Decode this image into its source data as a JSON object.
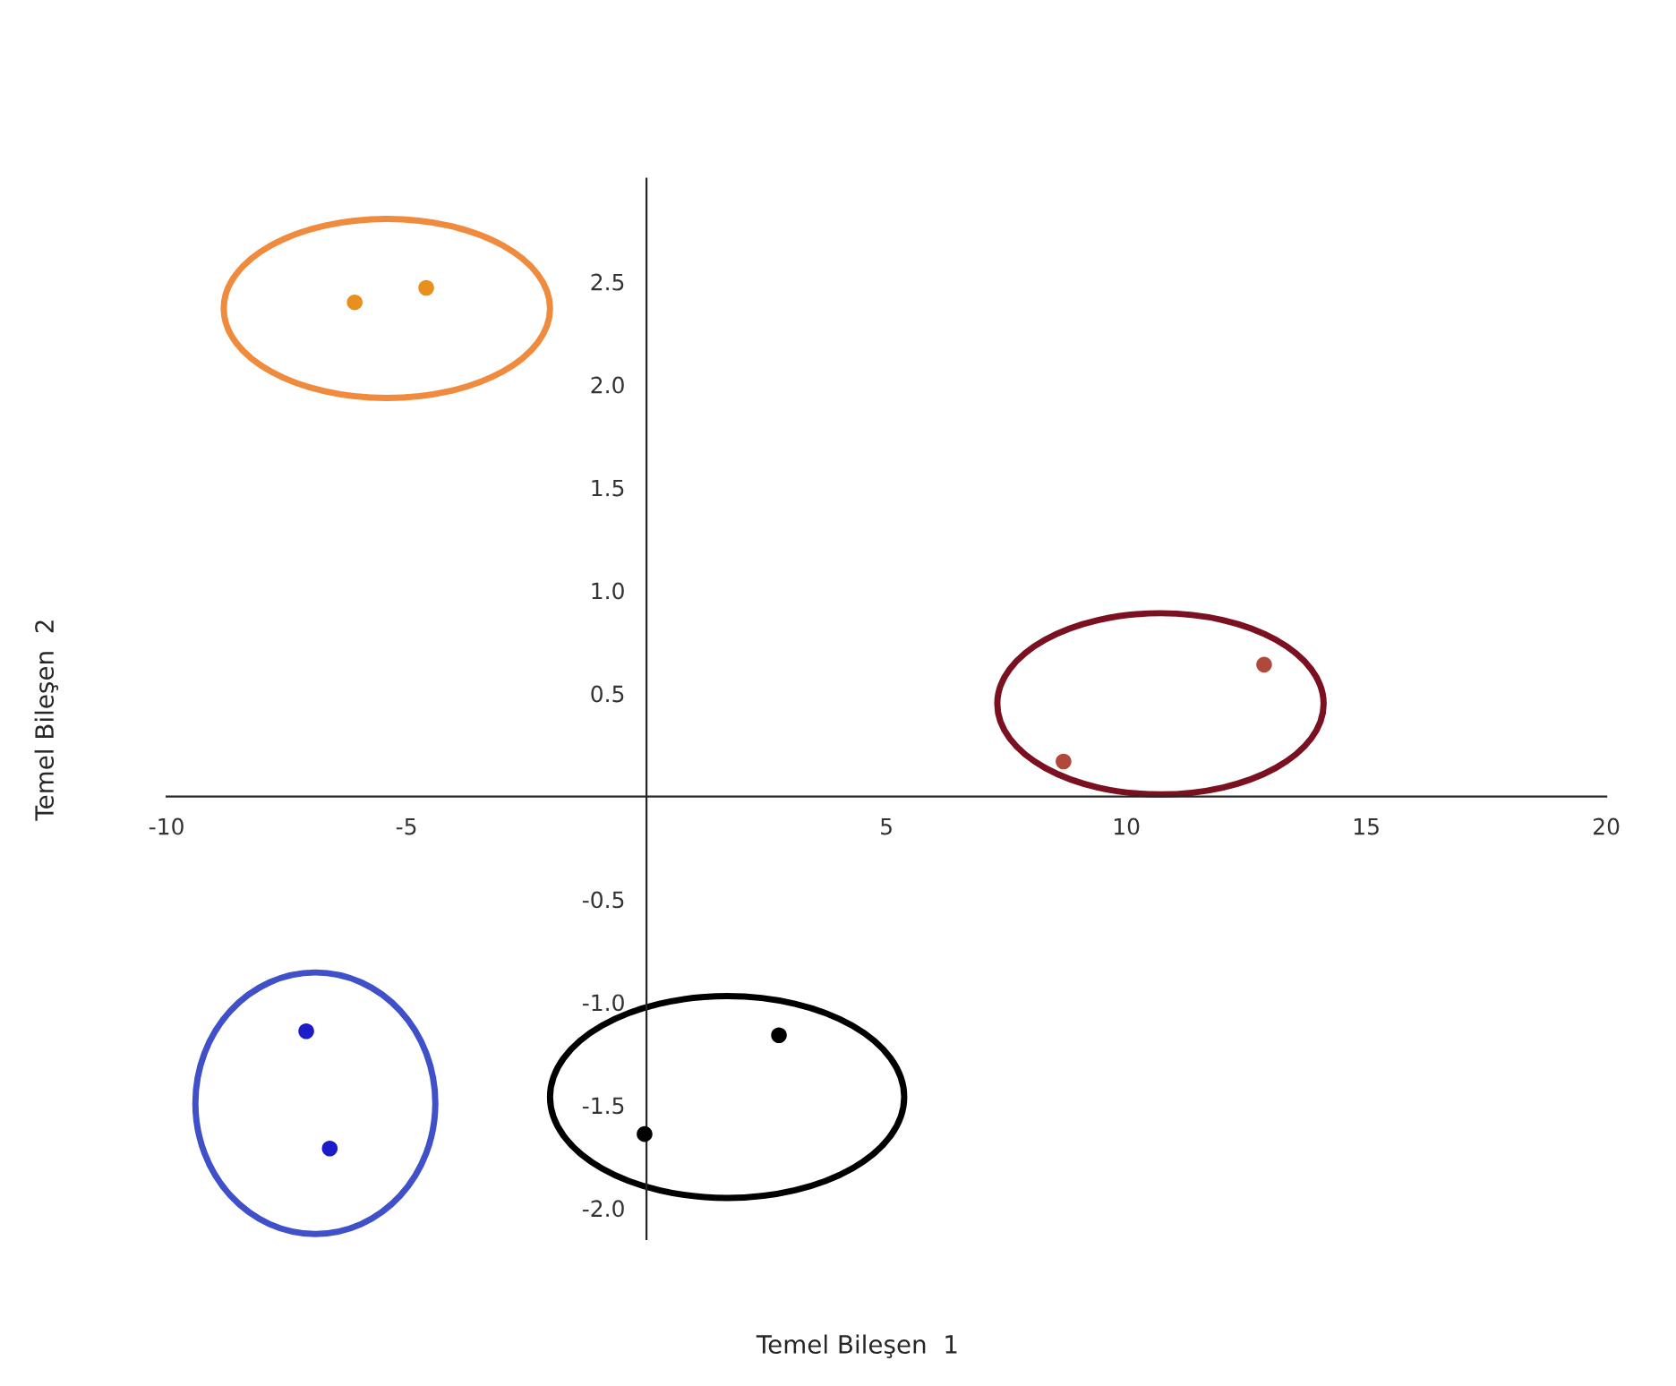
{
  "chart_data": {
    "type": "scatter",
    "xlabel": "Temel Bileşen  1",
    "ylabel": "Temel Bileşen  2",
    "xlim": [
      -10,
      20
    ],
    "ylim": [
      -2.15,
      3.0
    ],
    "xticks": [
      -10,
      -5,
      5,
      10,
      15,
      20
    ],
    "yticks": [
      {
        "value": -2,
        "label": "-2.0"
      },
      {
        "value": -1.5,
        "label": "-1.5"
      },
      {
        "value": -1,
        "label": "-1.0"
      },
      {
        "value": -0.5,
        "label": "-0.5"
      },
      {
        "value": 0.5,
        "label": "0.5"
      },
      {
        "value": 1,
        "label": "1.0"
      },
      {
        "value": 1.5,
        "label": "1.5"
      },
      {
        "value": 2,
        "label": "2.0"
      },
      {
        "value": 2.5,
        "label": "2.5"
      }
    ],
    "grid": false,
    "legend": false,
    "marker": "circle",
    "series": [
      {
        "color": "#e8901e",
        "x": [
          -6.08,
          -4.59
        ],
        "values": [
          2.4,
          2.47
        ]
      },
      {
        "color": "#b0483c",
        "x": [
          8.69,
          12.87
        ],
        "values": [
          0.17,
          0.64
        ]
      },
      {
        "color": "#1c1cc8",
        "x": [
          -7.09,
          -6.6
        ],
        "values": [
          -1.14,
          -1.71
        ]
      },
      {
        "color": "#000000",
        "x": [
          2.76,
          -0.04
        ],
        "values": [
          -1.16,
          -1.64
        ]
      }
    ]
  }
}
